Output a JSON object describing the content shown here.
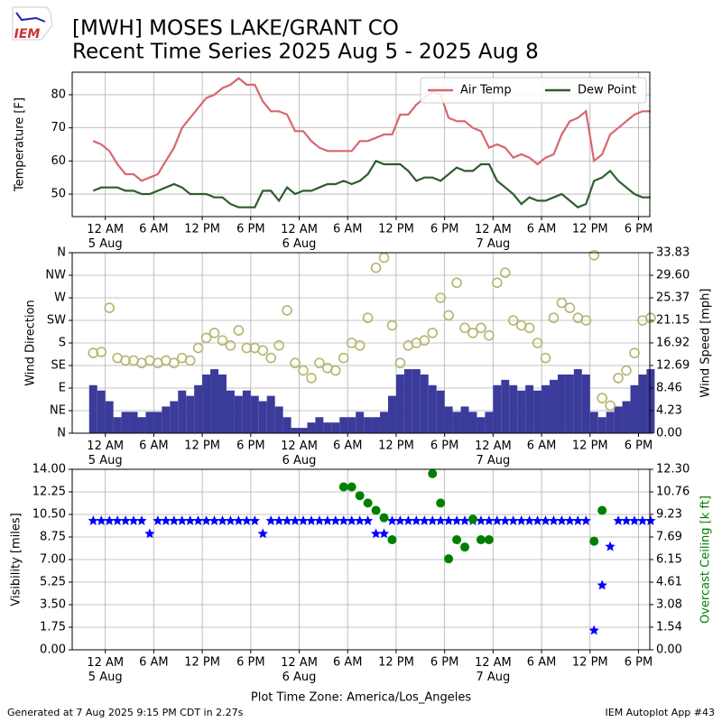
{
  "title": "[MWH] MOSES LAKE/GRANT CO",
  "subtitle": "Recent Time Series 2025 Aug 5 - 2025 Aug 8",
  "logo": "IEM",
  "footer_left": "Generated at 7 Aug 2025 9:15 PM CDT in 2.27s",
  "footer_right": "IEM Autoplot App #43",
  "chart_data": [
    {
      "type": "line",
      "y_label": "Temperature [F]",
      "legend": "upper right",
      "grid": true,
      "xlim": [
        "2025-08-04 19:54",
        "2025-08-07 19:24"
      ],
      "xticks": [
        {
          "value": "2025-08-05 00:00",
          "label": "12 AM\n5 Aug"
        },
        {
          "value": "2025-08-05 06:00",
          "label": "6 AM"
        },
        {
          "value": "2025-08-05 12:00",
          "label": "12 PM"
        },
        {
          "value": "2025-08-05 18:00",
          "label": "6 PM"
        },
        {
          "value": "2025-08-06 00:00",
          "label": "12 AM\n6 Aug"
        },
        {
          "value": "2025-08-06 06:00",
          "label": "6 AM"
        },
        {
          "value": "2025-08-06 12:00",
          "label": "12 PM"
        },
        {
          "value": "2025-08-06 18:00",
          "label": "6 PM"
        },
        {
          "value": "2025-08-07 00:00",
          "label": "12 AM\n7 Aug"
        },
        {
          "value": "2025-08-07 06:00",
          "label": "6 AM"
        },
        {
          "value": "2025-08-07 12:00",
          "label": "12 PM"
        },
        {
          "value": "2025-08-07 18:00",
          "label": "6 PM"
        }
      ],
      "ylim": [
        43.2,
        86.8
      ],
      "yticks": [
        50,
        60,
        70,
        80
      ],
      "x": [
        "2025-08-04 22:30",
        "2025-08-04 23:30",
        "2025-08-05 00:30",
        "2025-08-05 01:30",
        "2025-08-05 02:30",
        "2025-08-05 03:30",
        "2025-08-05 04:30",
        "2025-08-05 05:30",
        "2025-08-05 06:30",
        "2025-08-05 07:30",
        "2025-08-05 08:30",
        "2025-08-05 09:30",
        "2025-08-05 10:30",
        "2025-08-05 11:30",
        "2025-08-05 12:30",
        "2025-08-05 13:30",
        "2025-08-05 14:30",
        "2025-08-05 15:30",
        "2025-08-05 16:30",
        "2025-08-05 17:30",
        "2025-08-05 18:30",
        "2025-08-05 19:30",
        "2025-08-05 20:30",
        "2025-08-05 21:30",
        "2025-08-05 22:30",
        "2025-08-05 23:30",
        "2025-08-06 00:30",
        "2025-08-06 01:30",
        "2025-08-06 02:30",
        "2025-08-06 03:30",
        "2025-08-06 04:30",
        "2025-08-06 05:30",
        "2025-08-06 06:30",
        "2025-08-06 07:30",
        "2025-08-06 08:30",
        "2025-08-06 09:30",
        "2025-08-06 10:30",
        "2025-08-06 11:30",
        "2025-08-06 12:30",
        "2025-08-06 13:30",
        "2025-08-06 14:30",
        "2025-08-06 15:30",
        "2025-08-06 16:30",
        "2025-08-06 17:30",
        "2025-08-06 18:30",
        "2025-08-06 19:30",
        "2025-08-06 20:30",
        "2025-08-06 21:30",
        "2025-08-06 22:30",
        "2025-08-06 23:30",
        "2025-08-07 00:30",
        "2025-08-07 01:30",
        "2025-08-07 02:30",
        "2025-08-07 03:30",
        "2025-08-07 04:30",
        "2025-08-07 05:30",
        "2025-08-07 06:30",
        "2025-08-07 07:30",
        "2025-08-07 08:30",
        "2025-08-07 09:30",
        "2025-08-07 10:30",
        "2025-08-07 11:30",
        "2025-08-07 12:30",
        "2025-08-07 13:30",
        "2025-08-07 14:30",
        "2025-08-07 15:30",
        "2025-08-07 16:30",
        "2025-08-07 17:30",
        "2025-08-07 18:30",
        "2025-08-07 19:30"
      ],
      "series": [
        {
          "name": "Air Temp",
          "color": "#d9666f",
          "values": [
            66,
            65,
            63,
            59,
            56,
            56,
            54,
            55,
            56,
            60,
            64,
            70,
            73,
            76,
            79,
            80,
            82,
            83,
            85,
            83,
            83,
            78,
            75,
            75,
            74,
            69,
            69,
            66,
            64,
            63,
            63,
            63,
            63,
            66,
            66,
            67,
            68,
            68,
            74,
            74,
            77,
            79,
            81,
            80,
            73,
            72,
            72,
            70,
            69,
            64,
            65,
            64,
            61,
            62,
            61,
            59,
            61,
            62,
            68,
            72,
            73,
            75,
            60,
            62,
            68,
            70,
            72,
            74,
            75,
            75
          ]
        },
        {
          "name": "Dew Point",
          "color": "#2e5e2e",
          "values": [
            51,
            52,
            52,
            52,
            51,
            51,
            50,
            50,
            51,
            52,
            53,
            52,
            50,
            50,
            50,
            49,
            49,
            47,
            46,
            46,
            46,
            51,
            51,
            48,
            52,
            50,
            51,
            51,
            52,
            53,
            53,
            54,
            53,
            54,
            56,
            60,
            59,
            59,
            59,
            57,
            54,
            55,
            55,
            54,
            56,
            58,
            57,
            57,
            59,
            59,
            54,
            52,
            50,
            47,
            49,
            48,
            48,
            49,
            50,
            48,
            46,
            47,
            54,
            55,
            57,
            54,
            52,
            50,
            49,
            49
          ]
        }
      ]
    },
    {
      "type": "combo",
      "y_label": "Wind Direction",
      "y2_label": "Wind Speed [mph]",
      "grid": true,
      "xlim": [
        "2025-08-04 19:54",
        "2025-08-07 19:24"
      ],
      "xticks": [
        {
          "value": "2025-08-05 00:00",
          "label": "12 AM\n5 Aug"
        },
        {
          "value": "2025-08-05 06:00",
          "label": "6 AM"
        },
        {
          "value": "2025-08-05 12:00",
          "label": "12 PM"
        },
        {
          "value": "2025-08-05 18:00",
          "label": "6 PM"
        },
        {
          "value": "2025-08-06 00:00",
          "label": "12 AM\n6 Aug"
        },
        {
          "value": "2025-08-06 06:00",
          "label": "6 AM"
        },
        {
          "value": "2025-08-06 12:00",
          "label": "12 PM"
        },
        {
          "value": "2025-08-06 18:00",
          "label": "6 PM"
        },
        {
          "value": "2025-08-07 00:00",
          "label": "12 AM\n7 Aug"
        },
        {
          "value": "2025-08-07 06:00",
          "label": "6 AM"
        },
        {
          "value": "2025-08-07 12:00",
          "label": "12 PM"
        },
        {
          "value": "2025-08-07 18:00",
          "label": "6 PM"
        }
      ],
      "ylim": [
        0,
        360
      ],
      "yticks": [
        {
          "value": 0,
          "label": "N"
        },
        {
          "value": 45,
          "label": "NE"
        },
        {
          "value": 90,
          "label": "E"
        },
        {
          "value": 135,
          "label": "SE"
        },
        {
          "value": 180,
          "label": "S"
        },
        {
          "value": 225,
          "label": "SW"
        },
        {
          "value": 270,
          "label": "W"
        },
        {
          "value": 315,
          "label": "NW"
        },
        {
          "value": 360,
          "label": "N"
        }
      ],
      "y2lim": [
        0,
        33.83
      ],
      "y2ticks": [
        {
          "value": 0,
          "label": "0.00"
        },
        4.23,
        8.46,
        12.69,
        16.92,
        21.15,
        25.37,
        {
          "value": 29.6,
          "label": "29.60"
        },
        33.83
      ],
      "x": [
        "2025-08-04 22:30",
        "2025-08-04 23:30",
        "2025-08-05 00:30",
        "2025-08-05 01:30",
        "2025-08-05 02:30",
        "2025-08-05 03:30",
        "2025-08-05 04:30",
        "2025-08-05 05:30",
        "2025-08-05 06:30",
        "2025-08-05 07:30",
        "2025-08-05 08:30",
        "2025-08-05 09:30",
        "2025-08-05 10:30",
        "2025-08-05 11:30",
        "2025-08-05 12:30",
        "2025-08-05 13:30",
        "2025-08-05 14:30",
        "2025-08-05 15:30",
        "2025-08-05 16:30",
        "2025-08-05 17:30",
        "2025-08-05 18:30",
        "2025-08-05 19:30",
        "2025-08-05 20:30",
        "2025-08-05 21:30",
        "2025-08-05 22:30",
        "2025-08-05 23:30",
        "2025-08-06 00:30",
        "2025-08-06 01:30",
        "2025-08-06 02:30",
        "2025-08-06 03:30",
        "2025-08-06 04:30",
        "2025-08-06 05:30",
        "2025-08-06 06:30",
        "2025-08-06 07:30",
        "2025-08-06 08:30",
        "2025-08-06 09:30",
        "2025-08-06 10:30",
        "2025-08-06 11:30",
        "2025-08-06 12:30",
        "2025-08-06 13:30",
        "2025-08-06 14:30",
        "2025-08-06 15:30",
        "2025-08-06 16:30",
        "2025-08-06 17:30",
        "2025-08-06 18:30",
        "2025-08-06 19:30",
        "2025-08-06 20:30",
        "2025-08-06 21:30",
        "2025-08-06 22:30",
        "2025-08-06 23:30",
        "2025-08-07 00:30",
        "2025-08-07 01:30",
        "2025-08-07 02:30",
        "2025-08-07 03:30",
        "2025-08-07 04:30",
        "2025-08-07 05:30",
        "2025-08-07 06:30",
        "2025-08-07 07:30",
        "2025-08-07 08:30",
        "2025-08-07 09:30",
        "2025-08-07 10:30",
        "2025-08-07 11:30",
        "2025-08-07 12:30",
        "2025-08-07 13:30",
        "2025-08-07 14:30",
        "2025-08-07 15:30",
        "2025-08-07 16:30",
        "2025-08-07 17:30",
        "2025-08-07 18:30",
        "2025-08-07 19:30"
      ],
      "series": [
        {
          "type": "bar",
          "axis": "y2",
          "color": "#3b3b9b",
          "values": [
            9,
            8,
            6,
            3,
            4,
            4,
            3,
            4,
            4,
            5,
            6,
            8,
            7,
            9,
            11,
            12,
            11,
            8,
            7,
            8,
            7,
            6,
            7,
            5,
            3,
            1,
            1,
            2,
            3,
            2,
            2,
            3,
            3,
            4,
            3,
            3,
            4,
            7,
            11,
            12,
            12,
            11,
            9,
            8,
            5,
            4,
            5,
            4,
            3,
            4,
            9,
            10,
            9,
            8,
            9,
            8,
            9,
            10,
            11,
            11,
            12,
            11,
            4,
            3,
            4,
            5,
            6,
            9,
            11,
            12
          ]
        },
        {
          "type": "scatter",
          "color": "#b5b56e",
          "values": [
            160,
            162,
            250,
            150,
            145,
            145,
            140,
            145,
            140,
            145,
            140,
            150,
            145,
            170,
            190,
            200,
            185,
            175,
            205,
            170,
            170,
            165,
            150,
            175,
            245,
            140,
            125,
            110,
            140,
            130,
            125,
            150,
            180,
            175,
            230,
            330,
            350,
            215,
            140,
            175,
            180,
            185,
            200,
            270,
            235,
            300,
            210,
            200,
            210,
            195,
            300,
            320,
            225,
            215,
            210,
            180,
            150,
            230,
            260,
            250,
            230,
            225,
            355,
            70,
            55,
            110,
            125,
            160,
            225,
            230
          ]
        }
      ]
    },
    {
      "type": "scatter",
      "y_label": "Visibility [miles]",
      "y2_label": "Overcast Ceiling [k ft]",
      "x_label": "Plot Time Zone: America/Los_Angeles",
      "grid": true,
      "xlim": [
        "2025-08-04 19:54",
        "2025-08-07 19:24"
      ],
      "xticks": [
        {
          "value": "2025-08-05 00:00",
          "label": "12 AM\n5 Aug"
        },
        {
          "value": "2025-08-05 06:00",
          "label": "6 AM"
        },
        {
          "value": "2025-08-05 12:00",
          "label": "12 PM"
        },
        {
          "value": "2025-08-05 18:00",
          "label": "6 PM"
        },
        {
          "value": "2025-08-06 00:00",
          "label": "12 AM\n6 Aug"
        },
        {
          "value": "2025-08-06 06:00",
          "label": "6 AM"
        },
        {
          "value": "2025-08-06 12:00",
          "label": "12 PM"
        },
        {
          "value": "2025-08-06 18:00",
          "label": "6 PM"
        },
        {
          "value": "2025-08-07 00:00",
          "label": "12 AM\n7 Aug"
        },
        {
          "value": "2025-08-07 06:00",
          "label": "6 AM"
        },
        {
          "value": "2025-08-07 12:00",
          "label": "12 PM"
        },
        {
          "value": "2025-08-07 18:00",
          "label": "6 PM"
        }
      ],
      "ylim": [
        0,
        14
      ],
      "yticks": [
        {
          "value": 0,
          "label": "0.00"
        },
        1.75,
        {
          "value": 3.5,
          "label": "3.50"
        },
        5.25,
        {
          "value": 7,
          "label": "7.00"
        },
        8.75,
        {
          "value": 10.5,
          "label": "10.50"
        },
        12.25,
        {
          "value": 14,
          "label": "14.00"
        }
      ],
      "y2lim": [
        0,
        12.3
      ],
      "y2ticks": [
        {
          "value": 0,
          "label": "0.00"
        },
        1.54,
        3.08,
        4.61,
        6.15,
        7.69,
        9.23,
        10.76,
        {
          "value": 12.3,
          "label": "12.30"
        }
      ],
      "y2_color": "green",
      "x": [
        "2025-08-04 22:30",
        "2025-08-04 23:30",
        "2025-08-05 00:30",
        "2025-08-05 01:30",
        "2025-08-05 02:30",
        "2025-08-05 03:30",
        "2025-08-05 04:30",
        "2025-08-05 05:30",
        "2025-08-05 06:30",
        "2025-08-05 07:30",
        "2025-08-05 08:30",
        "2025-08-05 09:30",
        "2025-08-05 10:30",
        "2025-08-05 11:30",
        "2025-08-05 12:30",
        "2025-08-05 13:30",
        "2025-08-05 14:30",
        "2025-08-05 15:30",
        "2025-08-05 16:30",
        "2025-08-05 17:30",
        "2025-08-05 18:30",
        "2025-08-05 19:30",
        "2025-08-05 20:30",
        "2025-08-05 21:30",
        "2025-08-05 22:30",
        "2025-08-05 23:30",
        "2025-08-06 00:30",
        "2025-08-06 01:30",
        "2025-08-06 02:30",
        "2025-08-06 03:30",
        "2025-08-06 04:30",
        "2025-08-06 05:30",
        "2025-08-06 06:30",
        "2025-08-06 07:30",
        "2025-08-06 08:30",
        "2025-08-06 09:30",
        "2025-08-06 10:30",
        "2025-08-06 11:30",
        "2025-08-06 12:30",
        "2025-08-06 13:30",
        "2025-08-06 14:30",
        "2025-08-06 15:30",
        "2025-08-06 16:30",
        "2025-08-06 17:30",
        "2025-08-06 18:30",
        "2025-08-06 19:30",
        "2025-08-06 20:30",
        "2025-08-06 21:30",
        "2025-08-06 22:30",
        "2025-08-06 23:30",
        "2025-08-07 00:30",
        "2025-08-07 01:30",
        "2025-08-07 02:30",
        "2025-08-07 03:30",
        "2025-08-07 04:30",
        "2025-08-07 05:30",
        "2025-08-07 06:30",
        "2025-08-07 07:30",
        "2025-08-07 08:30",
        "2025-08-07 09:30",
        "2025-08-07 10:30",
        "2025-08-07 11:30",
        "2025-08-07 12:30",
        "2025-08-07 13:30",
        "2025-08-07 14:30",
        "2025-08-07 15:30",
        "2025-08-07 16:30",
        "2025-08-07 17:30",
        "2025-08-07 18:30",
        "2025-08-07 19:30"
      ],
      "series": [
        {
          "marker": "star",
          "color": "blue",
          "values": [
            10,
            10,
            10,
            10,
            10,
            10,
            10,
            9,
            10,
            10,
            10,
            10,
            10,
            10,
            10,
            10,
            10,
            10,
            10,
            10,
            10,
            9,
            10,
            10,
            10,
            10,
            10,
            10,
            10,
            10,
            10,
            10,
            10,
            10,
            10,
            9,
            9,
            10,
            10,
            10,
            10,
            10,
            10,
            10,
            10,
            10,
            10,
            10,
            10,
            10,
            10,
            10,
            10,
            10,
            10,
            10,
            10,
            10,
            10,
            10,
            10,
            10,
            1.5,
            5,
            8,
            10,
            10,
            10,
            10,
            10
          ]
        },
        {
          "marker": "circle",
          "axis": "y2",
          "color": "green",
          "values": [
            null,
            null,
            null,
            null,
            null,
            null,
            null,
            null,
            null,
            null,
            null,
            null,
            null,
            null,
            null,
            null,
            null,
            null,
            null,
            null,
            null,
            null,
            null,
            null,
            null,
            null,
            null,
            null,
            null,
            null,
            null,
            11.1,
            11.1,
            10.5,
            10.0,
            9.5,
            9.0,
            7.5,
            null,
            null,
            null,
            null,
            12.0,
            10.0,
            6.2,
            7.5,
            7.0,
            8.9,
            7.5,
            7.5,
            null,
            null,
            null,
            null,
            null,
            null,
            null,
            null,
            null,
            null,
            null,
            null,
            7.4,
            9.5,
            null,
            null,
            null,
            null,
            null,
            null
          ]
        }
      ]
    }
  ]
}
